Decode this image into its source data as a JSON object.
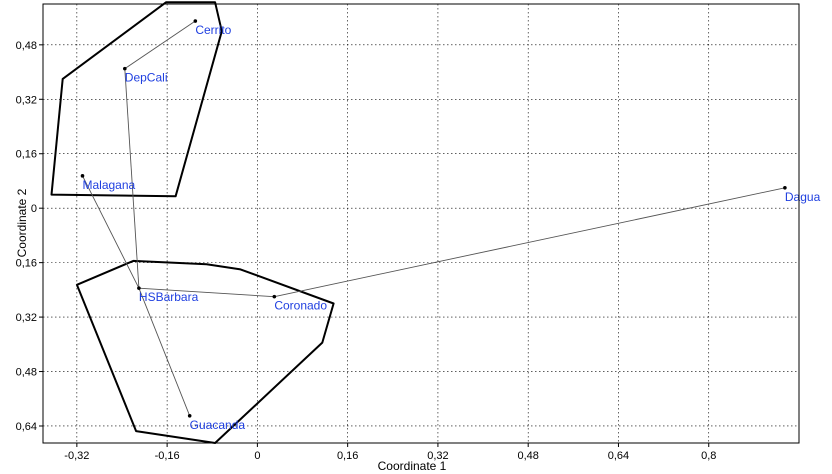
{
  "chart_data": {
    "type": "scatter",
    "title": "",
    "xlabel": "Coordinate 1",
    "ylabel": "Coordinate 2",
    "xlim": [
      -0.38,
      0.96
    ],
    "ylim": [
      -0.69,
      0.6
    ],
    "y_inverted_sign_display": true,
    "x_ticks": [
      {
        "value": -0.32,
        "label": "-0,32"
      },
      {
        "value": -0.16,
        "label": "-0,16"
      },
      {
        "value": 0,
        "label": "0"
      },
      {
        "value": 0.16,
        "label": "0,16"
      },
      {
        "value": 0.32,
        "label": "0,32"
      },
      {
        "value": 0.48,
        "label": "0,48"
      },
      {
        "value": 0.64,
        "label": "0,64"
      },
      {
        "value": 0.8,
        "label": "0,8"
      }
    ],
    "y_ticks": [
      {
        "value": 0.48,
        "label": "0,48"
      },
      {
        "value": 0.32,
        "label": "0,32"
      },
      {
        "value": 0.16,
        "label": "0,16"
      },
      {
        "value": 0,
        "label": "0"
      },
      {
        "value": -0.16,
        "label": "0,16"
      },
      {
        "value": -0.32,
        "label": "0,32"
      },
      {
        "value": -0.48,
        "label": "0,48"
      },
      {
        "value": -0.64,
        "label": "0,64"
      }
    ],
    "grid": true,
    "label_color": "#1f3fe0",
    "points": [
      {
        "name": "Cerrito",
        "x": -0.11,
        "y": 0.55
      },
      {
        "name": "DepCali",
        "x": -0.235,
        "y": 0.41
      },
      {
        "name": "Malagana",
        "x": -0.31,
        "y": 0.095
      },
      {
        "name": "HSBarbara",
        "x": -0.21,
        "y": -0.235
      },
      {
        "name": "Guacanda",
        "x": -0.12,
        "y": -0.61
      },
      {
        "name": "Coronado",
        "x": 0.03,
        "y": -0.26
      },
      {
        "name": "Dagua",
        "x": 0.935,
        "y": 0.06
      }
    ],
    "edges": [
      [
        "Cerrito",
        "DepCali"
      ],
      [
        "DepCali",
        "HSBarbara"
      ],
      [
        "Malagana",
        "HSBarbara"
      ],
      [
        "HSBarbara",
        "Guacanda"
      ],
      [
        "HSBarbara",
        "Coronado"
      ],
      [
        "Coronado",
        "Dagua"
      ]
    ],
    "hulls": [
      [
        [
          -0.162,
          0.605
        ],
        [
          -0.075,
          0.605
        ],
        [
          -0.063,
          0.52
        ],
        [
          -0.145,
          0.035
        ],
        [
          -0.365,
          0.04
        ],
        [
          -0.345,
          0.38
        ]
      ],
      [
        [
          -0.22,
          -0.155
        ],
        [
          -0.09,
          -0.165
        ],
        [
          -0.03,
          -0.18
        ],
        [
          0.135,
          -0.28
        ],
        [
          0.115,
          -0.395
        ],
        [
          -0.075,
          -0.69
        ],
        [
          -0.215,
          -0.655
        ],
        [
          -0.32,
          -0.225
        ]
      ]
    ]
  }
}
